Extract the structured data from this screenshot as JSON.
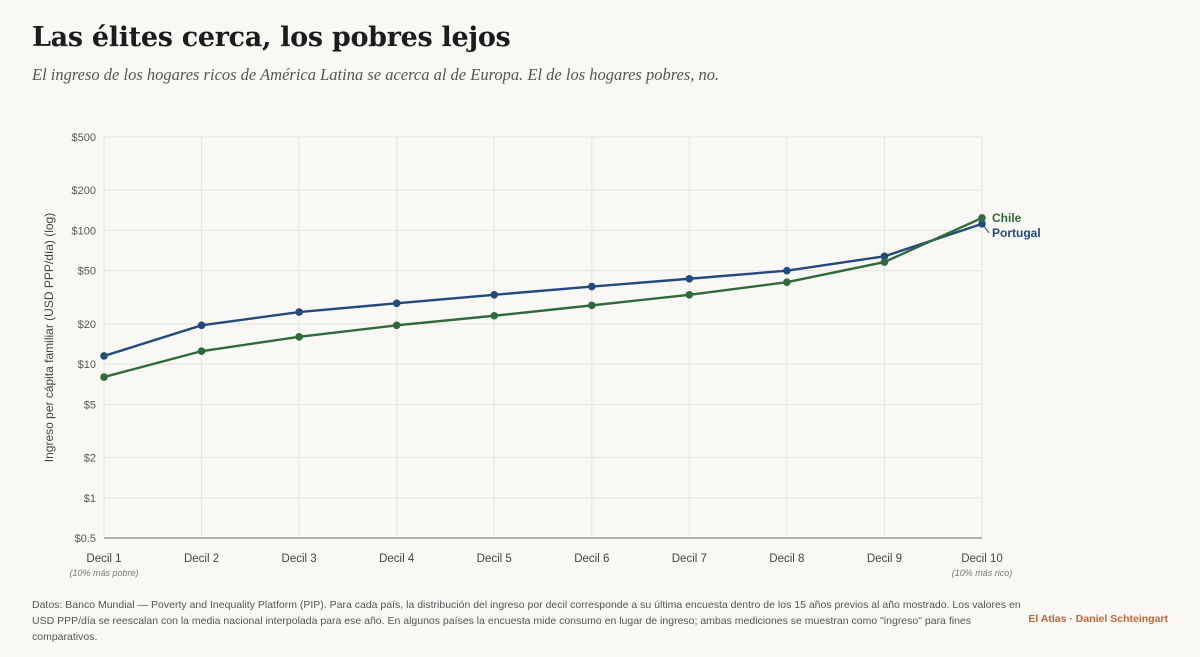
{
  "header": {
    "title": "Las élites cerca, los pobres lejos",
    "subtitle": "El ingreso de los hogares ricos de América Latina se acerca al de Europa. El de los hogares pobres, no."
  },
  "footer": {
    "note": "Datos: Banco Mundial — Poverty and Inequality Platform (PIP). Para cada país, la distribución del ingreso por decil corresponde a su última encuesta dentro de los 15 años previos al año mostrado. Los valores en USD PPP/día se reescalan con la media nacional interpolada para ese año. En algunos países la encuesta mide consumo en lugar de ingreso; ambas mediciones se muestran como \"ingreso\" para fines comparativos.",
    "credit": "El Atlas · Daniel Schteingart"
  },
  "chart_data": {
    "type": "line",
    "ylabel": "Ingreso per cápita familiar (USD PPP/día) (log)",
    "y_scale": "log",
    "ylim": [
      0.5,
      500
    ],
    "y_ticks": [
      0.5,
      1,
      2,
      5,
      10,
      20,
      50,
      100,
      200,
      500
    ],
    "y_tick_labels": [
      "$0.5",
      "$1",
      "$2",
      "$5",
      "$10",
      "$20",
      "$50",
      "$100",
      "$200",
      "$500"
    ],
    "categories": [
      "Decil 1",
      "Decil 2",
      "Decil 3",
      "Decil 4",
      "Decil 5",
      "Decil 6",
      "Decil 7",
      "Decil 8",
      "Decil 9",
      "Decil 10"
    ],
    "category_notes": {
      "first": "(10% más pobre)",
      "last": "(10% más rico)"
    },
    "grid": true,
    "series": [
      {
        "name": "Portugal",
        "color": "#234a7e",
        "values": [
          11.5,
          19.5,
          24.5,
          28.5,
          33,
          38,
          43.5,
          50,
          64,
          112
        ]
      },
      {
        "name": "Chile",
        "color": "#2e6a3a",
        "values": [
          8,
          12.5,
          16,
          19.5,
          23,
          27.5,
          33,
          41,
          58,
          124
        ]
      }
    ]
  }
}
